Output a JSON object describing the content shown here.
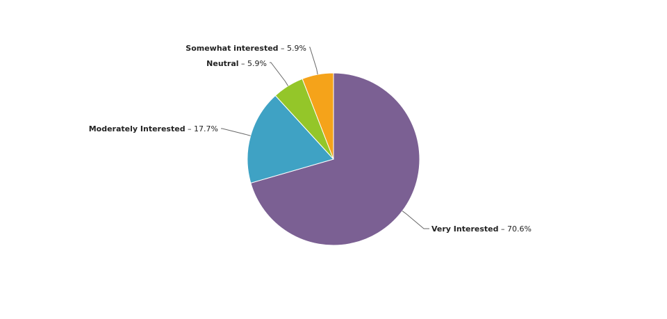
{
  "chart_data": {
    "type": "pie",
    "slices": [
      {
        "label": "Very Interested",
        "value": 70.6,
        "display": "70.6%",
        "color": "#7b6093"
      },
      {
        "label": "Moderately Interested",
        "value": 17.7,
        "display": "17.7%",
        "color": "#3fa2c4"
      },
      {
        "label": "Neutral",
        "value": 5.9,
        "display": "5.9%",
        "color": "#94c629"
      },
      {
        "label": "Somewhat interested",
        "value": 5.9,
        "display": "5.9%",
        "color": "#f5a31a"
      }
    ],
    "separator": " – ",
    "legend": "none",
    "start": "top",
    "direction": "clockwise"
  }
}
